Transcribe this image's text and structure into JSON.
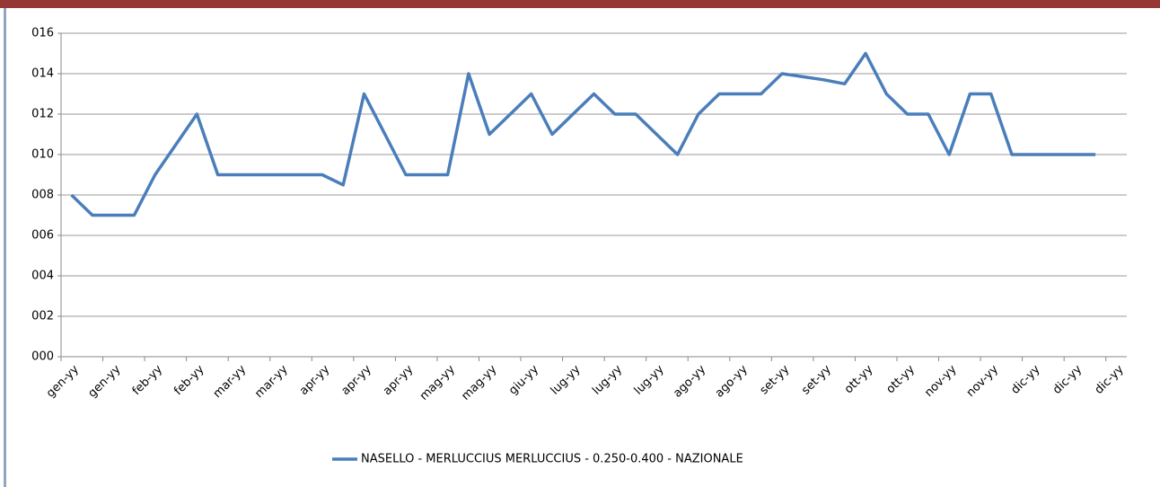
{
  "chart_data": {
    "type": "line",
    "categories": [
      "gen-yy",
      null,
      "gen-yy",
      null,
      "feb-yy",
      null,
      "feb-yy",
      null,
      "mar-yy",
      null,
      "mar-yy",
      null,
      "apr-yy",
      null,
      "apr-yy",
      null,
      "apr-yy",
      null,
      "mag-yy",
      null,
      "mag-yy",
      null,
      "giu-yy",
      null,
      "lug-yy",
      null,
      "lug-yy",
      null,
      "lug-yy",
      null,
      "ago-yy",
      null,
      "ago-yy",
      null,
      "set-yy",
      null,
      "set-yy",
      null,
      "ott-yy",
      null,
      "ott-yy",
      null,
      "nov-yy",
      null,
      "nov-yy",
      null,
      "dic-yy",
      null,
      "dic-yy",
      null,
      "dic-yy"
    ],
    "series": [
      {
        "name": "NASELLO - MERLUCCIUS MERLUCCIUS - 0.250-0.400 - NAZIONALE",
        "color": "#4a7ebb",
        "values": [
          8,
          7,
          7,
          7,
          9,
          10.5,
          12,
          9,
          9,
          9,
          9,
          9,
          9,
          8.5,
          13,
          11,
          9,
          9,
          9,
          14,
          11,
          12,
          13,
          11,
          12,
          13,
          12,
          12,
          11,
          10,
          12,
          13,
          13,
          13,
          14,
          13.85,
          13.7,
          13.5,
          15,
          13,
          12,
          12,
          10,
          13,
          13,
          10,
          10,
          10,
          10,
          10,
          null
        ]
      }
    ],
    "ylim": [
      0,
      16
    ],
    "yticks": [
      {
        "value": 0,
        "label": "000"
      },
      {
        "value": 2,
        "label": "002"
      },
      {
        "value": 4,
        "label": "004"
      },
      {
        "value": 6,
        "label": "006"
      },
      {
        "value": 8,
        "label": "008"
      },
      {
        "value": 10,
        "label": "010"
      },
      {
        "value": 12,
        "label": "012"
      },
      {
        "value": 14,
        "label": "014"
      },
      {
        "value": 16,
        "label": "016"
      }
    ],
    "grid": true,
    "legend": "bottom"
  }
}
